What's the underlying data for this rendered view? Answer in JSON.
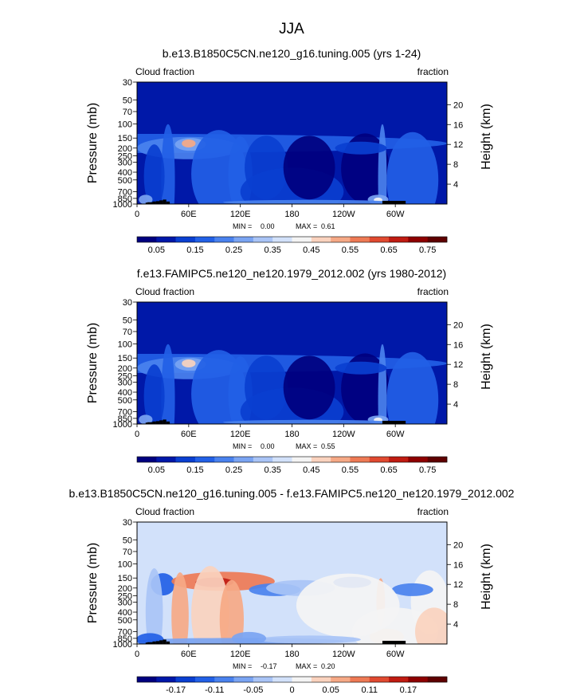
{
  "page": {
    "title": "JJA"
  },
  "common": {
    "left_string": "Cloud fraction",
    "right_string": "fraction",
    "ylabel": "Pressure (mb)",
    "y2label": "Height (km)",
    "pressure_ticks": [
      30,
      50,
      70,
      100,
      150,
      200,
      250,
      300,
      400,
      500,
      700,
      850,
      1000
    ],
    "height_ticks": [
      20,
      16,
      12,
      8,
      4
    ],
    "x_ticks": [
      "0",
      "60E",
      "120E",
      "180",
      "120W",
      "60W"
    ],
    "min_label": "MIN =",
    "max_label": "MAX ="
  },
  "chart_data": [
    {
      "type": "heatmap",
      "title": "b.e13.B1850C5CN.ne120_g16.tuning.005 (yrs 1-24)",
      "min": "0.00",
      "max": "0.61",
      "colorbar_labels": [
        "0.05",
        "0.15",
        "0.25",
        "0.35",
        "0.45",
        "0.55",
        "0.65",
        "0.75"
      ],
      "levels": [
        0.05,
        0.1,
        0.15,
        0.2,
        0.25,
        0.3,
        0.35,
        0.4,
        0.45,
        0.5,
        0.55,
        0.6,
        0.65,
        0.7,
        0.75
      ],
      "colors": [
        "#00007f",
        "#0018a8",
        "#0a3fd0",
        "#2260e6",
        "#4a82ee",
        "#7aa4f2",
        "#a9c4f6",
        "#d2e1fa",
        "#f4f4f4",
        "#fad2be",
        "#f6a986",
        "#ee7a55",
        "#e04a30",
        "#c01c12",
        "#8e0000",
        "#5e0000"
      ]
    },
    {
      "type": "heatmap",
      "title": "f.e13.FAMIPC5.ne120_ne120.1979_2012.002 (yrs 1980-2012)",
      "min": "0.00",
      "max": "0.55",
      "colorbar_labels": [
        "0.05",
        "0.15",
        "0.25",
        "0.35",
        "0.45",
        "0.55",
        "0.65",
        "0.75"
      ],
      "levels": [
        0.05,
        0.1,
        0.15,
        0.2,
        0.25,
        0.3,
        0.35,
        0.4,
        0.45,
        0.5,
        0.55,
        0.6,
        0.65,
        0.7,
        0.75
      ],
      "colors": [
        "#00007f",
        "#0018a8",
        "#0a3fd0",
        "#2260e6",
        "#4a82ee",
        "#7aa4f2",
        "#a9c4f6",
        "#d2e1fa",
        "#f4f4f4",
        "#fad2be",
        "#f6a986",
        "#ee7a55",
        "#e04a30",
        "#c01c12",
        "#8e0000",
        "#5e0000"
      ]
    },
    {
      "type": "heatmap",
      "title": "b.e13.B1850C5CN.ne120_g16.tuning.005 - f.e13.FAMIPC5.ne120_ne120.1979_2012.002",
      "min": "-0.17",
      "max": "0.20",
      "colorbar_labels": [
        "-0.17",
        "-0.11",
        "-0.05",
        "0",
        "0.05",
        "0.11",
        "0.17"
      ],
      "levels": [
        -0.2,
        -0.17,
        -0.14,
        -0.11,
        -0.08,
        -0.05,
        -0.02,
        0,
        0.02,
        0.05,
        0.08,
        0.11,
        0.14,
        0.17,
        0.2
      ],
      "colors": [
        "#00007f",
        "#0018a8",
        "#0a3fd0",
        "#2260e6",
        "#4a82ee",
        "#7aa4f2",
        "#a9c4f6",
        "#d2e1fa",
        "#f4f4f4",
        "#fad2be",
        "#f6a986",
        "#ee7a55",
        "#e04a30",
        "#c01c12",
        "#8e0000",
        "#5e0000"
      ]
    }
  ]
}
